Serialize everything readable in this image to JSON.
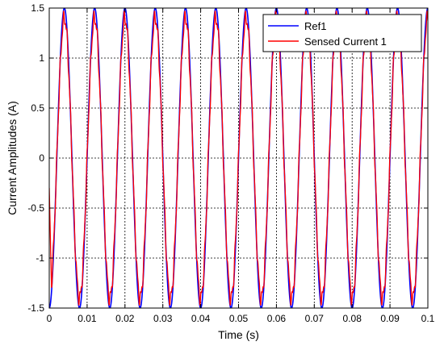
{
  "chart_data": {
    "type": "line",
    "xlabel": "Time (s)",
    "ylabel": "Current Amplitudes (A)",
    "xlim": [
      0,
      0.1
    ],
    "ylim": [
      -1.5,
      1.5
    ],
    "x_ticks": [
      0,
      0.01,
      0.02,
      0.03,
      0.04,
      0.05,
      0.06,
      0.07,
      0.08,
      0.09,
      0.1
    ],
    "x_tick_labels": [
      "0",
      "0.01",
      "0.02",
      "0.03",
      "0.04",
      "0.05",
      "0.06",
      "0.07",
      "0.08",
      "0.09",
      "0.1"
    ],
    "y_ticks": [
      -1.5,
      -1,
      -0.5,
      0,
      0.5,
      1,
      1.5
    ],
    "y_tick_labels": [
      "-1.5",
      "-1",
      "-0.5",
      "0",
      "0.5",
      "1",
      "1.5"
    ],
    "grid": true,
    "legend_position": "top-right",
    "series": [
      {
        "name": "Ref1",
        "color": "#0000ff",
        "style": "solid",
        "function": "sine",
        "amplitude": 1.5,
        "frequency_hz": 125,
        "phase_deg": -90
      },
      {
        "name": "Sensed Current 1",
        "color": "#ff0000",
        "style": "solid",
        "function": "sine",
        "amplitude": 1.4,
        "frequency_hz": 125,
        "phase_deg": -90,
        "ripple": true
      }
    ]
  }
}
